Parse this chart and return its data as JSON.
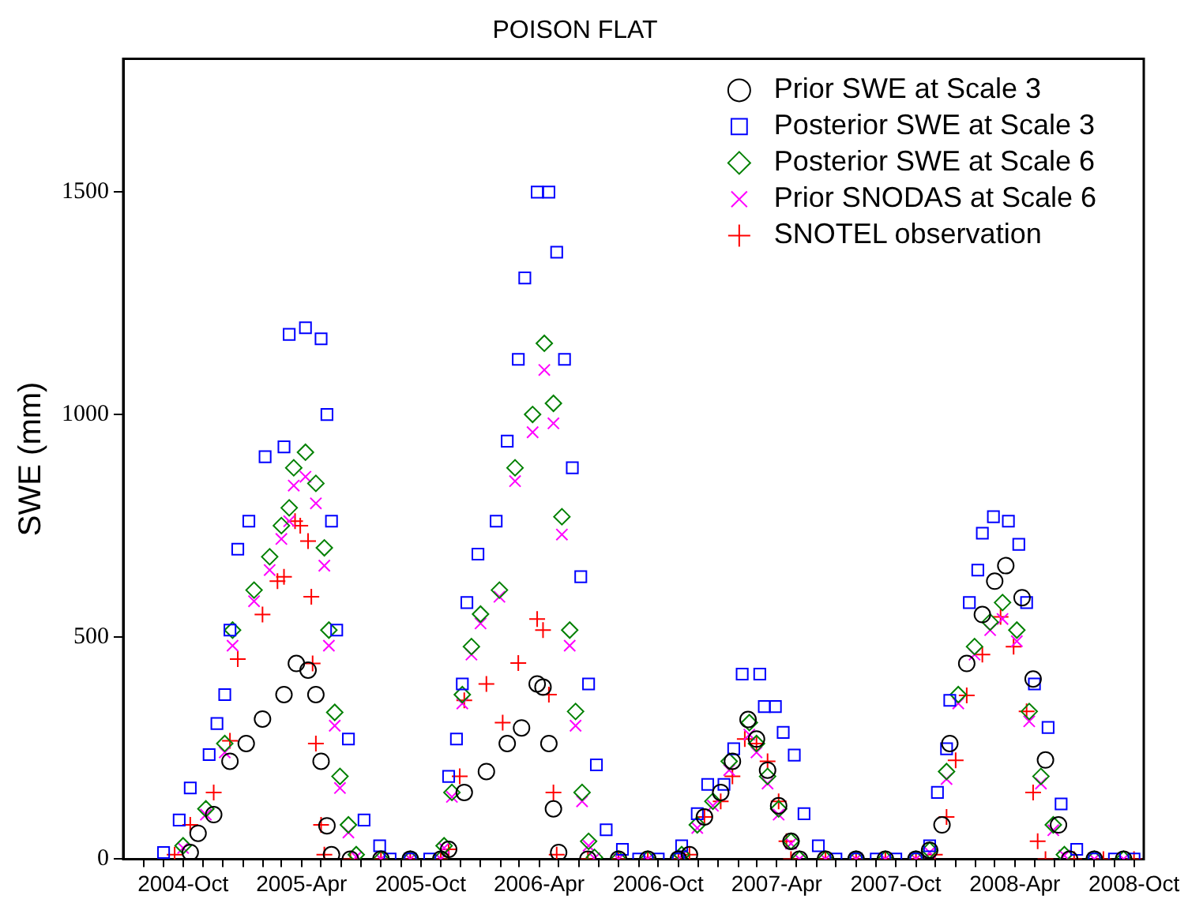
{
  "chart_data": {
    "type": "scatter",
    "title": "POISON FLAT",
    "ylabel": "SWE (mm)",
    "legend": "top right",
    "grid": false,
    "xlim": [
      "2004-07-01",
      "2008-10-16"
    ],
    "ylim": [
      0,
      1800
    ],
    "yticks": [
      0,
      500,
      1000,
      1500
    ],
    "xticks": [
      {
        "value": "2004-08",
        "label": null
      },
      {
        "value": "2004-09",
        "label": null
      },
      {
        "value": "2004-10",
        "label": "2004-Oct"
      },
      {
        "value": "2004-11",
        "label": null
      },
      {
        "value": "2004-12",
        "label": null
      },
      {
        "value": "2005-01",
        "label": null
      },
      {
        "value": "2005-02",
        "label": null
      },
      {
        "value": "2005-03",
        "label": null
      },
      {
        "value": "2005-04",
        "label": "2005-Apr"
      },
      {
        "value": "2005-05",
        "label": null
      },
      {
        "value": "2005-06",
        "label": null
      },
      {
        "value": "2005-07",
        "label": null
      },
      {
        "value": "2005-08",
        "label": null
      },
      {
        "value": "2005-09",
        "label": null
      },
      {
        "value": "2005-10",
        "label": "2005-Oct"
      },
      {
        "value": "2005-11",
        "label": null
      },
      {
        "value": "2005-12",
        "label": null
      },
      {
        "value": "2006-01",
        "label": null
      },
      {
        "value": "2006-02",
        "label": null
      },
      {
        "value": "2006-03",
        "label": null
      },
      {
        "value": "2006-04",
        "label": "2006-Apr"
      },
      {
        "value": "2006-05",
        "label": null
      },
      {
        "value": "2006-06",
        "label": null
      },
      {
        "value": "2006-07",
        "label": null
      },
      {
        "value": "2006-08",
        "label": null
      },
      {
        "value": "2006-09",
        "label": null
      },
      {
        "value": "2006-10",
        "label": "2006-Oct"
      },
      {
        "value": "2006-11",
        "label": null
      },
      {
        "value": "2006-12",
        "label": null
      },
      {
        "value": "2007-01",
        "label": null
      },
      {
        "value": "2007-02",
        "label": null
      },
      {
        "value": "2007-03",
        "label": null
      },
      {
        "value": "2007-04",
        "label": "2007-Apr"
      },
      {
        "value": "2007-05",
        "label": null
      },
      {
        "value": "2007-06",
        "label": null
      },
      {
        "value": "2007-07",
        "label": null
      },
      {
        "value": "2007-08",
        "label": null
      },
      {
        "value": "2007-09",
        "label": null
      },
      {
        "value": "2007-10",
        "label": "2007-Oct"
      },
      {
        "value": "2007-11",
        "label": null
      },
      {
        "value": "2007-12",
        "label": null
      },
      {
        "value": "2008-01",
        "label": null
      },
      {
        "value": "2008-02",
        "label": null
      },
      {
        "value": "2008-03",
        "label": null
      },
      {
        "value": "2008-04",
        "label": "2008-Apr"
      },
      {
        "value": "2008-05",
        "label": null
      },
      {
        "value": "2008-06",
        "label": null
      },
      {
        "value": "2008-07",
        "label": null
      },
      {
        "value": "2008-08",
        "label": null
      },
      {
        "value": "2008-09",
        "label": null
      },
      {
        "value": "2008-10",
        "label": "2008-Oct"
      }
    ],
    "series": [
      {
        "name": "Prior SWE at Scale 3",
        "color": "#000000",
        "marker": "circle",
        "x": [
          "2004-10-12",
          "2004-10-24",
          "2004-11-17",
          "2004-12-12",
          "2005-01-06",
          "2005-01-31",
          "2005-03-05",
          "2005-03-24",
          "2005-04-11",
          "2005-04-23",
          "2005-05-01",
          "2005-05-10",
          "2005-05-17",
          "2005-06-15",
          "2005-08-01",
          "2005-09-15",
          "2005-11-01",
          "2005-11-13",
          "2005-12-07",
          "2006-01-10",
          "2006-02-11",
          "2006-03-05",
          "2006-03-29",
          "2006-04-07",
          "2006-04-16",
          "2006-04-23",
          "2006-05-01",
          "2006-06-15",
          "2006-08-01",
          "2006-09-15",
          "2006-11-01",
          "2006-11-18",
          "2006-12-11",
          "2007-01-05",
          "2007-01-23",
          "2007-02-16",
          "2007-03-01",
          "2007-03-18",
          "2007-04-04",
          "2007-04-23",
          "2007-05-06",
          "2007-06-15",
          "2007-08-01",
          "2007-09-15",
          "2007-11-01",
          "2007-11-22",
          "2007-12-11",
          "2007-12-23",
          "2008-01-18",
          "2008-02-11",
          "2008-03-01",
          "2008-03-18",
          "2008-04-12",
          "2008-04-29",
          "2008-05-18",
          "2008-06-07",
          "2008-06-24",
          "2008-08-01",
          "2008-09-15"
        ],
        "values": [
          15,
          58,
          100,
          220,
          260,
          315,
          370,
          440,
          425,
          370,
          220,
          75,
          10,
          0,
          0,
          0,
          0,
          22,
          150,
          197,
          260,
          295,
          394,
          387,
          260,
          113,
          15,
          0,
          0,
          0,
          0,
          10,
          95,
          150,
          220,
          314,
          270,
          200,
          120,
          40,
          0,
          0,
          0,
          0,
          0,
          20,
          77,
          260,
          440,
          550,
          625,
          660,
          588,
          405,
          223,
          77,
          0,
          0,
          0
        ]
      },
      {
        "name": "Posterior SWE at Scale 3",
        "color": "#0000ff",
        "marker": "square",
        "x": [
          "2004-09-01",
          "2004-09-25",
          "2004-10-12",
          "2004-11-10",
          "2004-11-22",
          "2004-12-04",
          "2004-12-12",
          "2004-12-24",
          "2005-01-10",
          "2005-02-04",
          "2005-03-05",
          "2005-03-13",
          "2005-04-07",
          "2005-05-01",
          "2005-05-10",
          "2005-05-17",
          "2005-05-25",
          "2005-06-12",
          "2005-07-06",
          "2005-07-30",
          "2005-08-15",
          "2005-09-15",
          "2005-10-15",
          "2005-11-13",
          "2005-11-25",
          "2005-12-04",
          "2005-12-11",
          "2005-12-28",
          "2006-01-25",
          "2006-02-11",
          "2006-02-28",
          "2006-03-10",
          "2006-03-29",
          "2006-04-16",
          "2006-04-28",
          "2006-05-10",
          "2006-05-22",
          "2006-06-04",
          "2006-06-16",
          "2006-06-28",
          "2006-07-13",
          "2006-08-07",
          "2006-09-01",
          "2006-10-01",
          "2006-11-01",
          "2006-11-06",
          "2006-11-30",
          "2006-12-16",
          "2007-01-10",
          "2007-01-25",
          "2007-02-07",
          "2007-03-06",
          "2007-03-13",
          "2007-03-30",
          "2007-04-11",
          "2007-04-28",
          "2007-05-13",
          "2007-06-04",
          "2007-07-01",
          "2007-08-01",
          "2007-09-01",
          "2007-10-01",
          "2007-11-01",
          "2007-11-22",
          "2007-12-04",
          "2007-12-18",
          "2007-12-23",
          "2008-01-22",
          "2008-02-04",
          "2008-02-11",
          "2008-02-28",
          "2008-03-22",
          "2008-04-07",
          "2008-04-19",
          "2008-05-01",
          "2008-05-22",
          "2008-06-11",
          "2008-07-05",
          "2008-08-01",
          "2008-09-01",
          "2008-10-01"
        ],
        "values": [
          15,
          88,
          160,
          235,
          305,
          370,
          515,
          697,
          760,
          905,
          927,
          1180,
          1195,
          1170,
          1000,
          760,
          515,
          270,
          88,
          30,
          0,
          0,
          0,
          186,
          270,
          394,
          577,
          686,
          760,
          940,
          1124,
          1307,
          1500,
          1500,
          1365,
          1124,
          880,
          635,
          394,
          212,
          66,
          22,
          0,
          0,
          0,
          30,
          102,
          168,
          168,
          248,
          416,
          416,
          343,
          343,
          285,
          234,
          102,
          30,
          0,
          0,
          0,
          0,
          0,
          30,
          150,
          248,
          357,
          577,
          650,
          733,
          770,
          760,
          708,
          577,
          394,
          296,
          124,
          22,
          0,
          0,
          0
        ]
      },
      {
        "name": "Posterior SWE at Scale 6",
        "color": "#008000",
        "marker": "diamond",
        "x": [
          "2004-10-01",
          "2004-11-05",
          "2004-12-04",
          "2004-12-16",
          "2005-01-18",
          "2005-02-11",
          "2005-03-01",
          "2005-03-13",
          "2005-03-20",
          "2005-04-07",
          "2005-04-23",
          "2005-05-06",
          "2005-05-13",
          "2005-05-22",
          "2005-05-30",
          "2005-06-12",
          "2005-06-24",
          "2005-08-01",
          "2005-09-15",
          "2005-11-01",
          "2005-11-06",
          "2005-11-18",
          "2005-12-04",
          "2005-12-18",
          "2006-01-01",
          "2006-01-30",
          "2006-02-23",
          "2006-03-22",
          "2006-04-09",
          "2006-04-23",
          "2006-05-06",
          "2006-05-18",
          "2006-05-27",
          "2006-06-06",
          "2006-06-16",
          "2006-06-25",
          "2006-08-01",
          "2006-09-15",
          "2006-11-01",
          "2006-11-06",
          "2006-11-30",
          "2006-12-24",
          "2007-01-18",
          "2007-02-18",
          "2007-03-01",
          "2007-03-18",
          "2007-04-04",
          "2007-04-23",
          "2007-05-06",
          "2007-06-15",
          "2007-08-01",
          "2007-09-15",
          "2007-11-01",
          "2007-11-22",
          "2007-12-18",
          "2008-01-05",
          "2008-01-30",
          "2008-02-23",
          "2008-03-13",
          "2008-04-04",
          "2008-04-23",
          "2008-05-11",
          "2008-05-30",
          "2008-06-16",
          "2008-08-01",
          "2008-09-15"
        ],
        "values": [
          30,
          113,
          260,
          515,
          605,
          680,
          750,
          790,
          880,
          915,
          845,
          700,
          515,
          330,
          186,
          77,
          10,
          0,
          0,
          0,
          30,
          150,
          370,
          478,
          551,
          605,
          880,
          1000,
          1160,
          1025,
          770,
          515,
          332,
          150,
          40,
          4,
          0,
          0,
          0,
          10,
          77,
          130,
          220,
          307,
          260,
          186,
          113,
          40,
          0,
          0,
          0,
          0,
          0,
          20,
          197,
          370,
          478,
          533,
          577,
          515,
          332,
          186,
          77,
          10,
          0,
          0
        ]
      },
      {
        "name": "Prior SNODAS at Scale 6",
        "color": "#ff00ff",
        "marker": "cross",
        "x": [
          "2004-10-01",
          "2004-11-05",
          "2004-12-04",
          "2004-12-16",
          "2005-01-18",
          "2005-02-11",
          "2005-03-01",
          "2005-03-13",
          "2005-03-20",
          "2005-04-07",
          "2005-04-23",
          "2005-05-06",
          "2005-05-13",
          "2005-05-22",
          "2005-05-30",
          "2005-06-12",
          "2005-06-24",
          "2005-08-01",
          "2005-09-15",
          "2005-11-01",
          "2005-11-06",
          "2005-11-18",
          "2005-12-04",
          "2005-12-18",
          "2006-01-01",
          "2006-01-30",
          "2006-02-23",
          "2006-03-22",
          "2006-04-09",
          "2006-04-23",
          "2006-05-06",
          "2006-05-18",
          "2006-05-27",
          "2006-06-06",
          "2006-06-16",
          "2006-06-25",
          "2006-08-01",
          "2006-09-15",
          "2006-11-01",
          "2006-11-06",
          "2006-11-30",
          "2006-12-24",
          "2007-01-18",
          "2007-02-18",
          "2007-03-01",
          "2007-03-18",
          "2007-04-04",
          "2007-04-23",
          "2007-05-06",
          "2007-06-15",
          "2007-08-01",
          "2007-09-15",
          "2007-11-01",
          "2007-11-22",
          "2007-12-18",
          "2008-01-05",
          "2008-01-30",
          "2008-02-23",
          "2008-03-13",
          "2008-04-04",
          "2008-04-23",
          "2008-05-11",
          "2008-05-30",
          "2008-06-16",
          "2008-08-01",
          "2008-09-15"
        ],
        "values": [
          25,
          100,
          240,
          480,
          580,
          650,
          720,
          760,
          840,
          860,
          800,
          660,
          480,
          300,
          160,
          60,
          5,
          0,
          0,
          0,
          25,
          140,
          350,
          460,
          530,
          590,
          850,
          960,
          1100,
          980,
          730,
          480,
          300,
          130,
          30,
          2,
          0,
          0,
          0,
          8,
          70,
          120,
          200,
          280,
          240,
          170,
          100,
          35,
          0,
          0,
          0,
          0,
          0,
          15,
          180,
          350,
          460,
          515,
          540,
          490,
          310,
          170,
          65,
          8,
          0,
          0
        ]
      },
      {
        "name": "SNOTEL observation",
        "color": "#ff0000",
        "marker": "plus",
        "x": [
          "2004-09-18",
          "2004-10-12",
          "2004-11-17",
          "2004-12-12",
          "2004-12-24",
          "2005-01-31",
          "2005-02-23",
          "2005-03-05",
          "2005-03-22",
          "2005-03-30",
          "2005-04-11",
          "2005-04-16",
          "2005-04-18",
          "2005-04-23",
          "2005-05-01",
          "2005-05-06",
          "2005-06-15",
          "2005-08-01",
          "2005-09-15",
          "2005-11-01",
          "2005-11-13",
          "2005-11-30",
          "2005-12-07",
          "2006-01-10",
          "2006-02-04",
          "2006-02-28",
          "2006-03-29",
          "2006-04-07",
          "2006-04-16",
          "2006-04-23",
          "2006-04-28",
          "2006-06-15",
          "2006-08-01",
          "2006-09-15",
          "2006-11-01",
          "2006-11-18",
          "2006-12-11",
          "2007-01-05",
          "2007-01-23",
          "2007-02-11",
          "2007-03-01",
          "2007-03-18",
          "2007-04-04",
          "2007-04-16",
          "2007-04-23",
          "2007-06-15",
          "2007-08-01",
          "2007-09-15",
          "2007-11-01",
          "2007-11-30",
          "2007-12-18",
          "2008-01-01",
          "2008-01-18",
          "2008-02-11",
          "2008-03-10",
          "2008-03-30",
          "2008-04-19",
          "2008-04-29",
          "2008-05-06",
          "2008-05-18",
          "2008-07-01",
          "2008-08-15",
          "2008-10-01"
        ],
        "values": [
          10,
          77,
          150,
          266,
          450,
          550,
          625,
          635,
          760,
          750,
          715,
          590,
          440,
          260,
          77,
          10,
          0,
          0,
          0,
          0,
          22,
          186,
          357,
          394,
          307,
          441,
          540,
          515,
          370,
          150,
          10,
          0,
          0,
          0,
          0,
          10,
          95,
          130,
          186,
          270,
          260,
          220,
          130,
          40,
          0,
          0,
          0,
          0,
          0,
          10,
          95,
          222,
          368,
          460,
          545,
          478,
          332,
          150,
          40,
          0,
          0,
          0,
          0
        ]
      }
    ]
  }
}
